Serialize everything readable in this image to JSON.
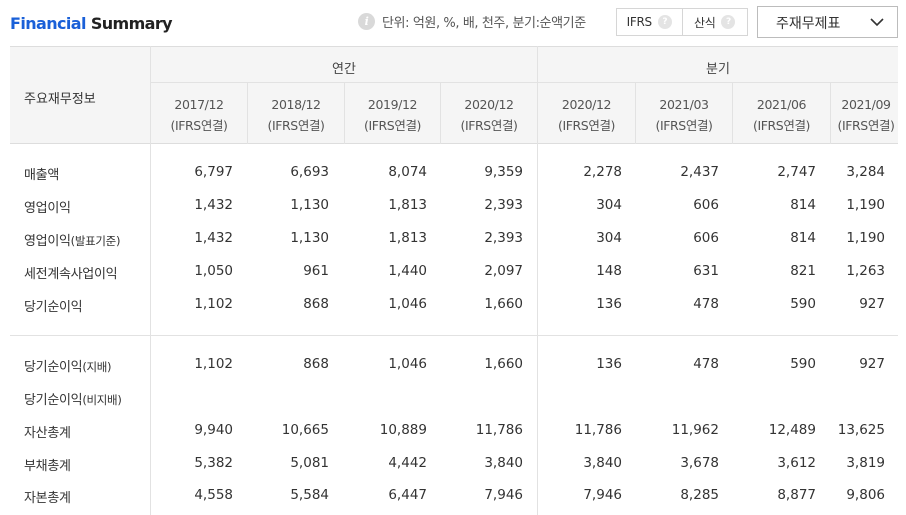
{
  "header": {
    "title_part1": "Financial",
    "title_part2": "Summary",
    "unit_note": "단위: 억원, %, 배, 천주, 분기:순액기준",
    "toggle": [
      "IFRS",
      "산식"
    ],
    "dropdown_label": "주재무제표"
  },
  "table": {
    "corner_label": "주요재무정보",
    "groups": [
      "연간",
      "분기"
    ],
    "columns": [
      {
        "period": "2017/12",
        "basis": "(IFRS연결)"
      },
      {
        "period": "2018/12",
        "basis": "(IFRS연결)"
      },
      {
        "period": "2019/12",
        "basis": "(IFRS연결)"
      },
      {
        "period": "2020/12",
        "basis": "(IFRS연결)"
      },
      {
        "period": "2020/12",
        "basis": "(IFRS연결)"
      },
      {
        "period": "2021/03",
        "basis": "(IFRS연결)"
      },
      {
        "period": "2021/06",
        "basis": "(IFRS연결)"
      },
      {
        "period": "2021/09",
        "basis": "(IFRS연결)"
      }
    ],
    "rows": [
      {
        "label": "매출액",
        "sub": "",
        "values": [
          "6,797",
          "6,693",
          "8,074",
          "9,359",
          "2,278",
          "2,437",
          "2,747",
          "3,284"
        ]
      },
      {
        "label": "영업이익",
        "sub": "",
        "values": [
          "1,432",
          "1,130",
          "1,813",
          "2,393",
          "304",
          "606",
          "814",
          "1,190"
        ]
      },
      {
        "label": "영업이익",
        "sub": "(발표기준)",
        "values": [
          "1,432",
          "1,130",
          "1,813",
          "2,393",
          "304",
          "606",
          "814",
          "1,190"
        ]
      },
      {
        "label": "세전계속사업이익",
        "sub": "",
        "values": [
          "1,050",
          "961",
          "1,440",
          "2,097",
          "148",
          "631",
          "821",
          "1,263"
        ]
      },
      {
        "label": "당기순이익",
        "sub": "",
        "values": [
          "1,102",
          "868",
          "1,046",
          "1,660",
          "136",
          "478",
          "590",
          "927"
        ]
      },
      {
        "label": "당기순이익",
        "sub": "(지배)",
        "values": [
          "1,102",
          "868",
          "1,046",
          "1,660",
          "136",
          "478",
          "590",
          "927"
        ]
      },
      {
        "label": "당기순이익",
        "sub": "(비지배)",
        "values": [
          "",
          "",
          "",
          "",
          "",
          "",
          "",
          ""
        ]
      },
      {
        "label": "자산총계",
        "sub": "",
        "values": [
          "9,940",
          "10,665",
          "10,889",
          "11,786",
          "11,786",
          "11,962",
          "12,489",
          "13,625"
        ]
      },
      {
        "label": "부채총계",
        "sub": "",
        "values": [
          "5,382",
          "5,081",
          "4,442",
          "3,840",
          "3,840",
          "3,678",
          "3,612",
          "3,819"
        ]
      },
      {
        "label": "자본총계",
        "sub": "",
        "values": [
          "4,558",
          "5,584",
          "6,447",
          "7,946",
          "7,946",
          "8,285",
          "8,877",
          "9,806"
        ]
      }
    ]
  }
}
